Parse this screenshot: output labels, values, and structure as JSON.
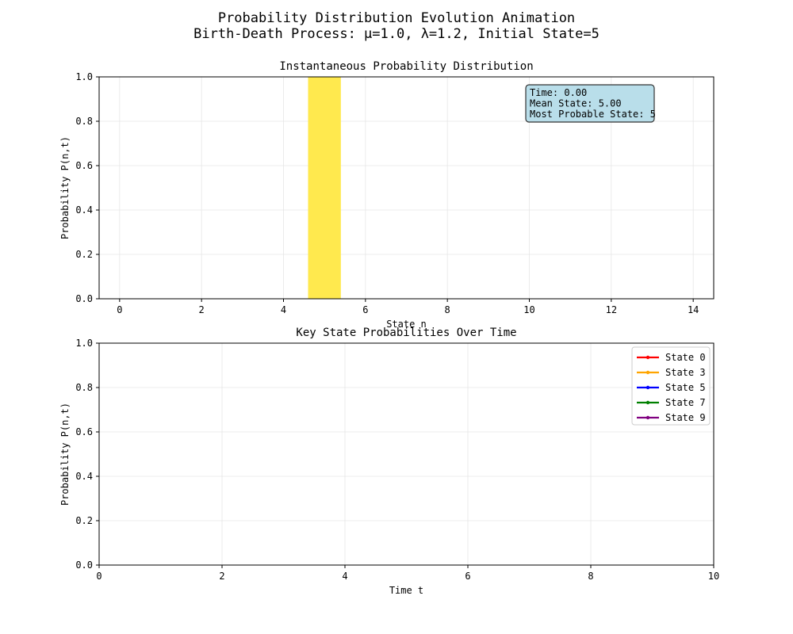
{
  "figure": {
    "title_line1": "Probability Distribution Evolution Animation",
    "title_line2": "Birth-Death Process: μ=1.0, λ=1.2, Initial State=5"
  },
  "chart_data": [
    {
      "type": "bar",
      "title": "Instantaneous Probability Distribution",
      "xlabel": "State n",
      "ylabel": "Probability P(n,t)",
      "xlim": [
        -0.5,
        14.5
      ],
      "ylim": [
        0,
        1
      ],
      "xticks": [
        0,
        2,
        4,
        6,
        8,
        10,
        12,
        14
      ],
      "yticks": [
        0.0,
        0.2,
        0.4,
        0.6,
        0.8,
        1.0
      ],
      "ytick_labels": [
        "0.0",
        "0.2",
        "0.4",
        "0.6",
        "0.8",
        "1.0"
      ],
      "grid": true,
      "bar_width": 0.8,
      "bar_color": "#ffe94e",
      "categories": [
        0,
        1,
        2,
        3,
        4,
        5,
        6,
        7,
        8,
        9,
        10,
        11,
        12,
        13,
        14
      ],
      "values": [
        0,
        0,
        0,
        0,
        0,
        1,
        0,
        0,
        0,
        0,
        0,
        0,
        0,
        0,
        0
      ],
      "info_box": {
        "lines": [
          "Time: 0.00",
          "Mean State: 5.00",
          "Most Probable State: 5"
        ],
        "background": "#add8e6"
      }
    },
    {
      "type": "line",
      "title": "Key State Probabilities Over Time",
      "xlabel": "Time t",
      "ylabel": "Probability P(n,t)",
      "xlim": [
        0,
        10
      ],
      "ylim": [
        0,
        1
      ],
      "xticks": [
        0,
        2,
        4,
        6,
        8,
        10
      ],
      "yticks": [
        0.0,
        0.2,
        0.4,
        0.6,
        0.8,
        1.0
      ],
      "ytick_labels": [
        "0.0",
        "0.2",
        "0.4",
        "0.6",
        "0.8",
        "1.0"
      ],
      "grid": true,
      "legend_position": "top-right",
      "series": [
        {
          "name": "State 0",
          "color": "#ff0000",
          "x": [],
          "y": []
        },
        {
          "name": "State 3",
          "color": "#ffa500",
          "x": [],
          "y": []
        },
        {
          "name": "State 5",
          "color": "#0000ff",
          "x": [],
          "y": []
        },
        {
          "name": "State 7",
          "color": "#008000",
          "x": [],
          "y": []
        },
        {
          "name": "State 9",
          "color": "#800080",
          "x": [],
          "y": []
        }
      ]
    }
  ]
}
